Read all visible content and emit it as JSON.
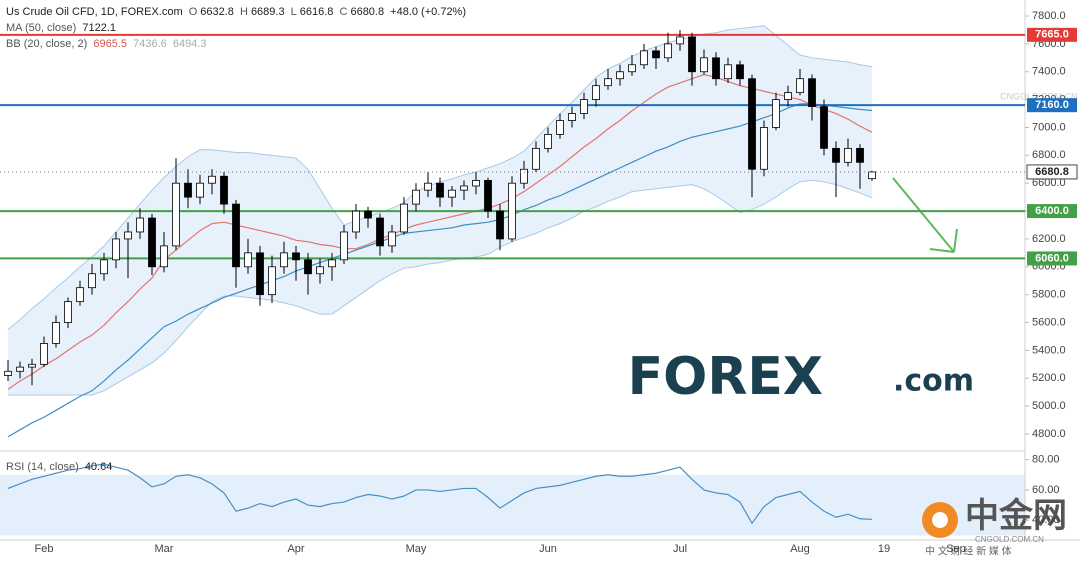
{
  "chart_data": [
    {
      "type": "candlestick",
      "title": "Us Crude Oil CFD, 1D, FOREX.com",
      "legend_keys": [
        "O",
        "H",
        "L",
        "C"
      ],
      "change": "+48.0 (+0.72%)",
      "categories": [
        null,
        null,
        null,
        "Feb",
        null,
        null,
        null,
        null,
        null,
        null,
        null,
        null,
        null,
        "Mar",
        null,
        null,
        null,
        null,
        null,
        null,
        null,
        null,
        null,
        null,
        "Apr",
        null,
        null,
        null,
        null,
        null,
        null,
        null,
        null,
        null,
        "May",
        null,
        null,
        null,
        null,
        null,
        null,
        null,
        null,
        null,
        null,
        "Jun",
        null,
        null,
        null,
        null,
        null,
        null,
        null,
        null,
        null,
        null,
        "Jul",
        null,
        null,
        null,
        null,
        null,
        null,
        null,
        null,
        null,
        "Aug",
        null,
        null,
        null,
        null,
        null,
        null,
        "19",
        null,
        null,
        null,
        null,
        null,
        "Sep"
      ],
      "open": [
        5220,
        5250,
        5280,
        5300,
        5450,
        5600,
        5750,
        5850,
        5950,
        6050,
        6200,
        6250,
        6350,
        6000,
        6150,
        6600,
        6500,
        6600,
        6650,
        6450,
        6000,
        6100,
        5800,
        6000,
        6100,
        6050,
        5950,
        6000,
        6050,
        6250,
        6400,
        6350,
        6150,
        6250,
        6450,
        6550,
        6600,
        6500,
        6550,
        6580,
        6620,
        6400,
        6200,
        6600,
        6700,
        6850,
        6950,
        7050,
        7100,
        7200,
        7300,
        7350,
        7400,
        7450,
        7550,
        7500,
        7600,
        7650,
        7400,
        7500,
        7350,
        7450,
        7350,
        6700,
        7000,
        7200,
        7250,
        7350,
        7150,
        6850,
        6750,
        6850,
        6632.8,
        null,
        null,
        null,
        null,
        null,
        null,
        null
      ],
      "high": [
        5330,
        5320,
        5340,
        5500,
        5650,
        5780,
        5900,
        6020,
        6100,
        6250,
        6320,
        6420,
        6380,
        6250,
        6780,
        6700,
        6660,
        6700,
        6680,
        6480,
        6200,
        6150,
        6080,
        6180,
        6150,
        6100,
        6060,
        6100,
        6300,
        6450,
        6430,
        6380,
        6300,
        6500,
        6600,
        6680,
        6640,
        6580,
        6620,
        6680,
        6640,
        6450,
        6650,
        6760,
        6900,
        7000,
        7100,
        7150,
        7250,
        7350,
        7420,
        7450,
        7520,
        7600,
        7580,
        7680,
        7700,
        7680,
        7560,
        7540,
        7500,
        7480,
        7380,
        7050,
        7250,
        7300,
        7420,
        7380,
        7200,
        6900,
        6920,
        6880,
        6689.3,
        null,
        null,
        null,
        null,
        null,
        null,
        null
      ],
      "low": [
        5180,
        5200,
        5150,
        5280,
        5420,
        5560,
        5720,
        5800,
        5900,
        5990,
        5920,
        6200,
        5940,
        5960,
        6120,
        6420,
        6450,
        6520,
        6380,
        5850,
        5950,
        5720,
        5740,
        5950,
        5900,
        5800,
        5880,
        5900,
        6020,
        6200,
        6280,
        6080,
        6100,
        6230,
        6400,
        6500,
        6430,
        6430,
        6480,
        6520,
        6350,
        6120,
        6180,
        6560,
        6680,
        6820,
        6920,
        7000,
        7060,
        7150,
        7270,
        7300,
        7370,
        7420,
        7420,
        7470,
        7550,
        7300,
        7380,
        7300,
        7320,
        7300,
        6500,
        6650,
        6980,
        7150,
        7230,
        7050,
        6800,
        6500,
        6720,
        6560,
        6616.8,
        null,
        null,
        null,
        null,
        null,
        null,
        null
      ],
      "close": [
        5250,
        5280,
        5300,
        5450,
        5600,
        5750,
        5850,
        5950,
        6050,
        6200,
        6250,
        6350,
        6000,
        6150,
        6600,
        6500,
        6600,
        6650,
        6450,
        6000,
        6100,
        5800,
        6000,
        6100,
        6050,
        5950,
        6000,
        6050,
        6250,
        6400,
        6350,
        6150,
        6250,
        6450,
        6550,
        6600,
        6500,
        6550,
        6580,
        6620,
        6400,
        6200,
        6600,
        6700,
        6850,
        6950,
        7050,
        7100,
        7200,
        7300,
        7350,
        7400,
        7450,
        7550,
        7500,
        7600,
        7650,
        7400,
        7500,
        7350,
        7450,
        7350,
        6700,
        7000,
        7200,
        7250,
        7350,
        7150,
        6850,
        6750,
        6850,
        6750,
        6680.8,
        null,
        null,
        null,
        null,
        null,
        null,
        null
      ],
      "up_color": "#ffffff",
      "down_color": "#000000",
      "ma": {
        "name": "MA (50, close)",
        "color": "#3f8fc4",
        "values": [
          4780,
          4830,
          4880,
          4920,
          4970,
          5020,
          5070,
          5110,
          5180,
          5260,
          5330,
          5410,
          5490,
          5570,
          5610,
          5660,
          5700,
          5740,
          5780,
          5810,
          5840,
          5870,
          5900,
          5930,
          5970,
          6000,
          6030,
          6060,
          6090,
          6120,
          6150,
          6180,
          6210,
          6240,
          6250,
          6260,
          6270,
          6280,
          6300,
          6310,
          6320,
          6340,
          6370,
          6410,
          6440,
          6480,
          6510,
          6550,
          6590,
          6630,
          6670,
          6710,
          6750,
          6790,
          6830,
          6860,
          6900,
          6930,
          6950,
          6970,
          6990,
          7010,
          7040,
          7070,
          7100,
          7140,
          7170,
          7170,
          7160,
          7150,
          7140,
          7130,
          7122.1,
          null,
          null,
          null,
          null,
          null,
          null,
          null
        ]
      },
      "bb": {
        "name": "BB (20, close, 2)",
        "fill": "#e6f1fb",
        "basis": {
          "color": "#e57373",
          "values": [
            5120,
            5180,
            5230,
            5290,
            5340,
            5400,
            5460,
            5510,
            5580,
            5670,
            5750,
            5840,
            5920,
            6050,
            6120,
            6190,
            6260,
            6310,
            6320,
            6300,
            6280,
            6260,
            6240,
            6220,
            6190,
            6180,
            6160,
            6150,
            6130,
            6130,
            6160,
            6200,
            6230,
            6270,
            6300,
            6320,
            6340,
            6360,
            6380,
            6400,
            6420,
            6450,
            6490,
            6540,
            6600,
            6660,
            6720,
            6790,
            6860,
            6920,
            6990,
            7050,
            7120,
            7180,
            7240,
            7290,
            7320,
            7350,
            7380,
            7360,
            7330,
            7300,
            7280,
            7260,
            7240,
            7220,
            7200,
            7160,
            7130,
            7100,
            7060,
            7010,
            6965.5,
            null,
            null,
            null,
            null,
            null,
            null,
            null
          ]
        },
        "upper": {
          "color": "#a9c9e6",
          "values": [
            5550,
            5620,
            5700,
            5770,
            5850,
            5920,
            6000,
            6070,
            6150,
            6250,
            6350,
            6450,
            6550,
            6640,
            6720,
            6790,
            6840,
            6840,
            6830,
            6820,
            6820,
            6810,
            6800,
            6790,
            6780,
            6700,
            6560,
            6420,
            6300,
            6330,
            6360,
            6390,
            6420,
            6460,
            6540,
            6580,
            6610,
            6630,
            6660,
            6680,
            6710,
            6740,
            6780,
            6830,
            6920,
            7010,
            7100,
            7180,
            7270,
            7360,
            7420,
            7460,
            7510,
            7550,
            7580,
            7610,
            7630,
            7650,
            7670,
            7680,
            7700,
            7710,
            7720,
            7730,
            7660,
            7590,
            7520,
            7500,
            7490,
            7480,
            7470,
            7450,
            7436.6,
            null,
            null,
            null,
            null,
            null,
            null,
            null
          ]
        },
        "lower": {
          "color": "#a9c9e6",
          "values": [
            5080,
            5080,
            5080,
            5080,
            5080,
            5080,
            5080,
            5080,
            5110,
            5160,
            5210,
            5260,
            5310,
            5380,
            5470,
            5570,
            5660,
            5750,
            5790,
            5790,
            5780,
            5770,
            5760,
            5740,
            5720,
            5690,
            5660,
            5660,
            5720,
            5780,
            5840,
            5900,
            5950,
            5990,
            6000,
            6020,
            6030,
            6050,
            6060,
            6070,
            6090,
            6140,
            6180,
            6210,
            6240,
            6280,
            6310,
            6350,
            6400,
            6430,
            6470,
            6500,
            6540,
            6550,
            6560,
            6570,
            6580,
            6590,
            6560,
            6510,
            6450,
            6390,
            6410,
            6450,
            6500,
            6560,
            6610,
            6620,
            6610,
            6590,
            6560,
            6530,
            6494.3,
            null,
            null,
            null,
            null,
            null,
            null,
            null
          ]
        }
      },
      "levels": [
        {
          "value": 7665,
          "label": "7665.0",
          "color": "#e53935"
        },
        {
          "value": 7160,
          "label": "7160.0",
          "color": "#1e6fbf"
        },
        {
          "value": 6400,
          "label": "6400.0",
          "color": "#43a047"
        },
        {
          "value": 6060,
          "label": "6060.0",
          "color": "#43a047"
        }
      ],
      "ylim": [
        4685,
        7915
      ],
      "yticks": [
        {
          "value": 4800,
          "label": "4800.0"
        },
        {
          "value": 5000,
          "label": "5000.0"
        },
        {
          "value": 5200,
          "label": "5200.0"
        },
        {
          "value": 5400,
          "label": "5400.0"
        },
        {
          "value": 5600,
          "label": "5600.0"
        },
        {
          "value": 5800,
          "label": "5800.0"
        },
        {
          "value": 6000,
          "label": "6000.0"
        },
        {
          "value": 6200,
          "label": "6200.0"
        },
        {
          "value": 6400,
          "label": "6400.0"
        },
        {
          "value": 6600,
          "label": "6600.0"
        },
        {
          "value": 6800,
          "label": "6800.0"
        },
        {
          "value": 7000,
          "label": "7000.0"
        },
        {
          "value": 7200,
          "label": "7200.0"
        },
        {
          "value": 7400,
          "label": "7400.0"
        },
        {
          "value": 7600,
          "label": "7600.0"
        },
        {
          "value": 7800,
          "label": "7800.0"
        }
      ]
    },
    {
      "type": "line",
      "title": "RSI (14, close)",
      "color": "#4a8fc4",
      "band_color": "#e3effa",
      "values": [
        61,
        64,
        67,
        69,
        71,
        73,
        74,
        76,
        77,
        75,
        73,
        68,
        62,
        64,
        69,
        70,
        68,
        64,
        58,
        46,
        48,
        51,
        49,
        52,
        54,
        50,
        49,
        51,
        52,
        55,
        57,
        56,
        54,
        56,
        60,
        60,
        59,
        60,
        61,
        61,
        55,
        48,
        53,
        58,
        61,
        62,
        63,
        65,
        67,
        69,
        70,
        69,
        69,
        70,
        71,
        73,
        75,
        67,
        60,
        58,
        57,
        52,
        38,
        49,
        55,
        57,
        59,
        52,
        46,
        42,
        44,
        41,
        40.64,
        null,
        null,
        null,
        null,
        null,
        null,
        null
      ],
      "band": [
        30,
        70
      ],
      "ylim": [
        27,
        85
      ],
      "yticks": [
        {
          "value": 40,
          "label": "40.00"
        },
        {
          "value": 60,
          "label": "60.00"
        },
        {
          "value": 80,
          "label": "80.00"
        }
      ]
    }
  ],
  "logo": {
    "brand": "FOREX",
    "domain": ".com"
  },
  "watermark": {
    "name": "中金网",
    "site": "CNGOLD.COM.CN",
    "slogan": "中 文 财 经 新 媒 体"
  }
}
